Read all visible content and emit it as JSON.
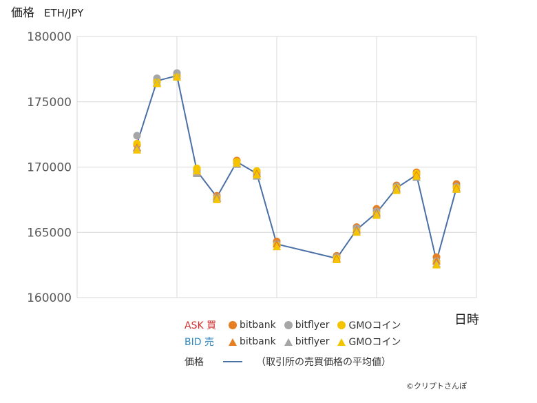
{
  "chart_title": "価格",
  "pair": "ETH/JPY",
  "x_unit_label": "日時",
  "copyright": "©クリプトさんぽ",
  "legend": {
    "ask_label": "ASK",
    "ask_kanji": "買",
    "bid_label": "BID",
    "bid_kanji": "売",
    "exchanges": [
      "bitbank",
      "bitflyer",
      "GMOコイン"
    ],
    "avg_label": "価格",
    "avg_desc": "（取引所の売買価格の平均値）"
  },
  "colors": {
    "bitbank": "#e67e22",
    "bitflyer": "#a6a6a6",
    "gmo": "#f5c400",
    "avg_line": "#4a6fa5",
    "ask_text": "#d0312d",
    "bid_text": "#2e86c1"
  },
  "chart_data": {
    "type": "line",
    "ylim": [
      160000,
      180000
    ],
    "y_ticks": [
      160000,
      165000,
      170000,
      175000,
      180000
    ],
    "xlim": [
      0,
      20
    ],
    "x_gridlines": [
      5,
      10,
      15
    ],
    "grid": true,
    "series": [
      {
        "name": "bitbank",
        "marker": "circle",
        "x": [
          3,
          4,
          5,
          6,
          7,
          8,
          9,
          10,
          13,
          14,
          15,
          16,
          17,
          18,
          19
        ],
        "values": [
          171700,
          176600,
          177000,
          169800,
          167800,
          170500,
          169600,
          164300,
          163200,
          165400,
          166800,
          168600,
          169600,
          163100,
          168700
        ]
      },
      {
        "name": "bitflyer",
        "marker": "circle",
        "x": [
          3,
          4,
          5,
          6,
          7,
          8,
          9,
          10,
          13,
          14,
          15,
          16,
          17,
          18,
          19
        ],
        "values": [
          172400,
          176800,
          177200,
          169600,
          167700,
          170300,
          169400,
          164100,
          163100,
          165300,
          166600,
          168500,
          169400,
          162800,
          168500
        ]
      },
      {
        "name": "GMOコイン",
        "marker": "circle",
        "x": [
          3,
          4,
          5,
          6,
          7,
          8,
          9,
          10,
          13,
          14,
          15,
          16,
          17,
          18,
          19
        ],
        "values": [
          171800,
          176500,
          176900,
          169900,
          167600,
          170400,
          169700,
          164000,
          163000,
          165100,
          166400,
          168400,
          169500,
          162700,
          168400
        ]
      },
      {
        "name": "bitbank",
        "marker": "triangle",
        "x": [
          3,
          4,
          5,
          6,
          7,
          8,
          9,
          10,
          13,
          14,
          15,
          16,
          17,
          18,
          19
        ],
        "values": [
          171500,
          176400,
          176900,
          169600,
          167700,
          170300,
          169500,
          164100,
          163000,
          165200,
          166500,
          168400,
          169400,
          162800,
          168400
        ]
      },
      {
        "name": "bitflyer",
        "marker": "triangle",
        "x": [
          3,
          4,
          5,
          6,
          7,
          8,
          9,
          10,
          13,
          14,
          15,
          16,
          17,
          18,
          19
        ],
        "values": [
          171400,
          176500,
          177000,
          169500,
          167600,
          170200,
          169300,
          163900,
          162900,
          165100,
          166400,
          168300,
          169200,
          162600,
          168300
        ]
      },
      {
        "name": "GMOコイン",
        "marker": "triangle",
        "x": [
          3,
          4,
          5,
          6,
          7,
          8,
          9,
          10,
          13,
          14,
          15,
          16,
          17,
          18,
          19
        ],
        "values": [
          171300,
          176400,
          176900,
          169700,
          167500,
          170300,
          169400,
          163900,
          162900,
          165000,
          166300,
          168200,
          169300,
          162500,
          168300
        ]
      },
      {
        "name": "価格",
        "marker": "line",
        "x": [
          3,
          4,
          5,
          6,
          7,
          8,
          9,
          10,
          13,
          14,
          15,
          16,
          17,
          18,
          19
        ],
        "values": [
          171800,
          176600,
          177000,
          169700,
          167700,
          170400,
          169500,
          164100,
          163000,
          165200,
          166500,
          168400,
          169400,
          162800,
          168400
        ]
      }
    ]
  }
}
